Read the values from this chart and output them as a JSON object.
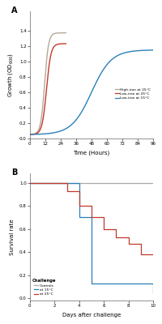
{
  "panel_A": {
    "xlabel": "Time (Hours)",
    "xlim": [
      0,
      96
    ],
    "ylim": [
      0.0,
      1.65
    ],
    "yticks": [
      0.0,
      0.2,
      0.4,
      0.6,
      0.8,
      1.0,
      1.2,
      1.4
    ],
    "xticks": [
      0,
      12,
      24,
      36,
      48,
      60,
      72,
      84,
      96
    ],
    "high_iron_25_color": "#b5a898",
    "low_iron_25_color": "#c0392b",
    "low_iron_15_color": "#2980b9",
    "legend_labels": [
      "High-iron at 25°C",
      "Low-iron at 25°C",
      "Low-iron at 15°C"
    ]
  },
  "panel_B": {
    "xlabel": "Days after challenge",
    "ylabel": "Survival rate",
    "xlim": [
      0,
      10
    ],
    "ylim": [
      -0.02,
      1.08
    ],
    "yticks": [
      0.0,
      0.2,
      0.4,
      0.6,
      0.8,
      1.0
    ],
    "xticks": [
      0,
      2,
      4,
      6,
      8,
      10
    ],
    "controls_color": "#aaaaaa",
    "at15_color": "#2980b9",
    "at25_color": "#c0392b",
    "legend_labels": [
      "Controls",
      "at 15°C",
      "at 25°C"
    ],
    "legend_title": "Challenge"
  }
}
